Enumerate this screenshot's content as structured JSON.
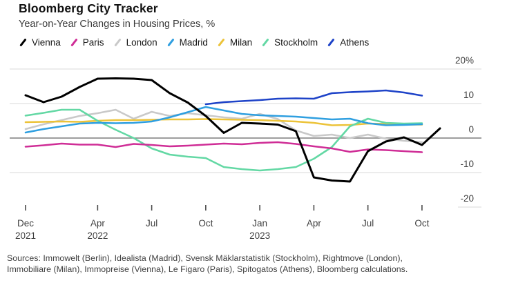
{
  "header": {
    "title": "Bloomberg City Tracker",
    "subtitle": "Year-on-Year Changes in Housing Prices, %"
  },
  "colors": {
    "background": "#ffffff",
    "grid": "#d9d9d9",
    "zero_line": "#7d7d7d",
    "tick": "#4a4a4a",
    "axis_text": "#3f3f3f"
  },
  "chart_data": {
    "type": "line",
    "title": "Bloomberg City Tracker",
    "subtitle": "Year-on-Year Changes in Housing Prices, %",
    "ylabel": "%",
    "ylim": [
      -20,
      20
    ],
    "grid": "horizontal",
    "legend_position": "top",
    "months": [
      "Dec 2021",
      "Jan 2022",
      "Feb 2022",
      "Mar 2022",
      "Apr 2022",
      "May 2022",
      "Jun 2022",
      "Jul 2022",
      "Aug 2022",
      "Sep 2022",
      "Oct 2022",
      "Nov 2022",
      "Dec 2022",
      "Jan 2023",
      "Feb 2023",
      "Mar 2023",
      "Apr 2023",
      "May 2023",
      "Jun 2023",
      "Jul 2023",
      "Aug 2023",
      "Sep 2023",
      "Oct 2023",
      "Nov 2023"
    ],
    "x_ticks": [
      {
        "i": 0,
        "month": "Dec",
        "year": "2021"
      },
      {
        "i": 4,
        "month": "Apr",
        "year": "2022"
      },
      {
        "i": 7,
        "month": "Jul",
        "year": ""
      },
      {
        "i": 10,
        "month": "Oct",
        "year": ""
      },
      {
        "i": 13,
        "month": "Jan",
        "year": "2023"
      },
      {
        "i": 16,
        "month": "Apr",
        "year": ""
      },
      {
        "i": 19,
        "month": "Jul",
        "year": ""
      },
      {
        "i": 22,
        "month": "Oct",
        "year": ""
      }
    ],
    "y_ticks": [
      {
        "label": "20%",
        "value": 20,
        "full_width": true
      },
      {
        "label": "10",
        "value": 10,
        "full_width": true
      },
      {
        "label": "0",
        "value": 0,
        "full_width": true
      },
      {
        "label": "-10",
        "value": -10,
        "full_width": true
      },
      {
        "label": "-20",
        "value": -20,
        "full_width": false
      }
    ],
    "series": [
      {
        "name": "London",
        "color": "#c9c9c9",
        "values": [
          2.6,
          4,
          5.2,
          6.4,
          7.2,
          8.2,
          5.6,
          7.6,
          6.4,
          7.2,
          6.6,
          6,
          5.6,
          7,
          5.5,
          2.2,
          0.6,
          1,
          0,
          1,
          -0.2,
          -0.8,
          -1.2,
          null
        ]
      },
      {
        "name": "Milan",
        "color": "#ecc339",
        "values": [
          4.6,
          4.7,
          4.8,
          4.7,
          5,
          5.2,
          5.2,
          5.3,
          5.4,
          5.4,
          5.5,
          5.4,
          5.3,
          5.2,
          5,
          4.8,
          4.4,
          3.7,
          3.8,
          4.2,
          4.1,
          3.9,
          3.9,
          null
        ]
      },
      {
        "name": "Stockholm",
        "color": "#63d8a4",
        "values": [
          6.5,
          7.3,
          8.2,
          8.2,
          5,
          2.4,
          0,
          -3,
          -4.8,
          -5.4,
          -5.8,
          -8.4,
          -9,
          -9.4,
          -9,
          -8.4,
          -6,
          -2.6,
          3.4,
          5.6,
          4.4,
          4.2,
          4.3,
          null
        ]
      },
      {
        "name": "Madrid",
        "color": "#2f9fe0",
        "values": [
          1.6,
          2.6,
          3.4,
          4.2,
          4.4,
          4.3,
          4.4,
          4.8,
          6,
          7.5,
          9,
          8,
          7,
          6.6,
          6.4,
          6.2,
          5.8,
          5.4,
          5.6,
          4.3,
          3.7,
          3.8,
          4,
          null
        ]
      },
      {
        "name": "Paris",
        "color": "#cf2d96",
        "values": [
          -2.5,
          -2.1,
          -1.6,
          -1.9,
          -1.9,
          -2.6,
          -1.7,
          -2,
          -2.4,
          -2.2,
          -1.9,
          -1.6,
          -1.8,
          -1.4,
          -1.2,
          -1.7,
          -2.4,
          -3,
          -4,
          -3.3,
          -3.5,
          -3.8,
          -4.1,
          null
        ]
      },
      {
        "name": "Athens",
        "color": "#1e43c8",
        "values": [
          null,
          null,
          null,
          null,
          null,
          null,
          null,
          null,
          null,
          null,
          9.8,
          10.4,
          10.7,
          11,
          11.4,
          11.5,
          11.4,
          13,
          13.3,
          13.5,
          13.8,
          13.2,
          12.3,
          null
        ]
      },
      {
        "name": "Vienna",
        "color": "#000000",
        "values": [
          12.4,
          10.4,
          12,
          14.8,
          17.2,
          17.3,
          17.2,
          16.8,
          13,
          10.3,
          6.4,
          1.5,
          4.4,
          4.2,
          3.9,
          2,
          -11.4,
          -12.3,
          -12.6,
          -3.8,
          -1,
          0.2,
          -2,
          2.8
        ]
      }
    ],
    "legend_order": [
      "Vienna",
      "Paris",
      "London",
      "Madrid",
      "Milan",
      "Stockholm",
      "Athens"
    ]
  },
  "footer": {
    "sources_line1": "Sources: Immowelt (Berlin), Idealista (Madrid), Svensk Mäklarstatistik (Stockholm), Rightmove (London),",
    "sources_line2": "Immobiliare (Milan), Immopreise (Vienna), Le Figaro (Paris), Spitogatos (Athens), Bloomberg calculations."
  }
}
